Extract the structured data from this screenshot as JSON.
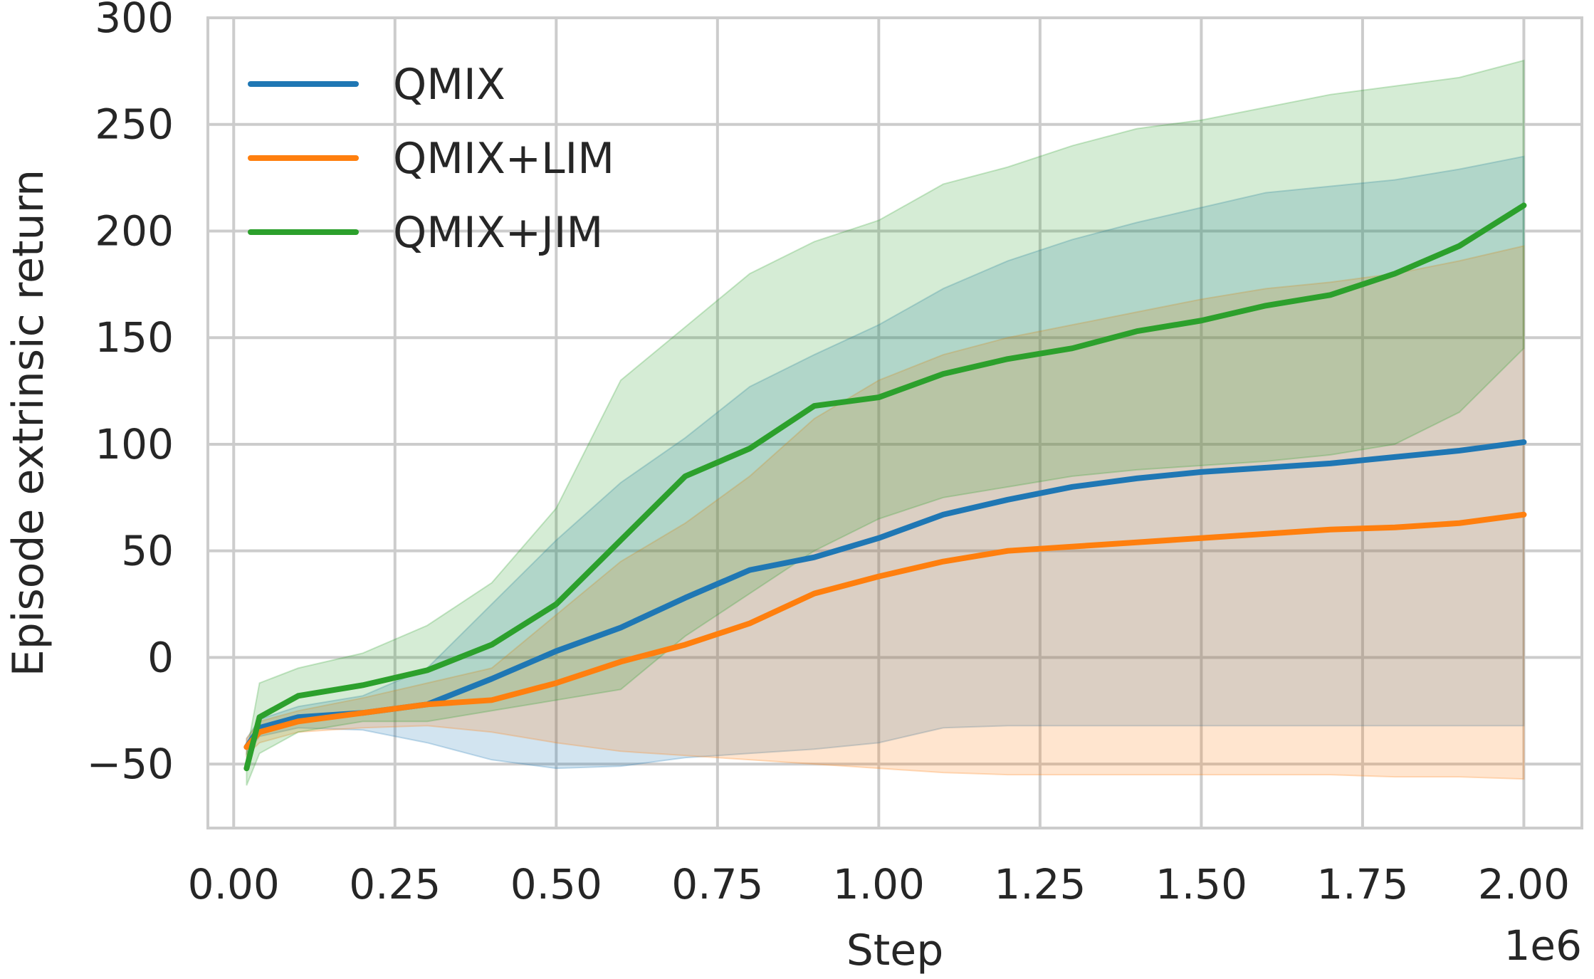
{
  "chart_data": {
    "type": "line",
    "title": "",
    "xlabel": "Step",
    "ylabel": "Episode extrinsic return",
    "x_offset_label": "1e6",
    "xlim": [
      -0.04,
      2.09
    ],
    "ylim": [
      -80,
      300
    ],
    "xticks": [
      0.0,
      0.25,
      0.5,
      0.75,
      1.0,
      1.25,
      1.5,
      1.75,
      2.0
    ],
    "xtick_labels": [
      "0.00",
      "0.25",
      "0.50",
      "0.75",
      "1.00",
      "1.25",
      "1.50",
      "1.75",
      "2.00"
    ],
    "yticks": [
      -50,
      0,
      50,
      100,
      150,
      200,
      250,
      300
    ],
    "ytick_labels": [
      "−50",
      "0",
      "50",
      "100",
      "150",
      "200",
      "250",
      "300"
    ],
    "grid": true,
    "legend": "top-left",
    "x": [
      0.02,
      0.04,
      0.1,
      0.2,
      0.3,
      0.4,
      0.5,
      0.6,
      0.7,
      0.8,
      0.9,
      1.0,
      1.1,
      1.2,
      1.3,
      1.4,
      1.5,
      1.6,
      1.7,
      1.8,
      1.9,
      2.0
    ],
    "series": [
      {
        "name": "QMIX",
        "color": "#1f77b4",
        "values": [
          -42,
          -33,
          -28,
          -26,
          -22,
          -10,
          3,
          14,
          28,
          41,
          47,
          56,
          67,
          74,
          80,
          84,
          87,
          89,
          91,
          94,
          97,
          101
        ],
        "lower": [
          -45,
          -37,
          -33,
          -34,
          -40,
          -48,
          -52,
          -51,
          -47,
          -45,
          -43,
          -40,
          -33,
          -32,
          -32,
          -32,
          -32,
          -32,
          -32,
          -32,
          -32,
          -32
        ],
        "upper": [
          -38,
          -29,
          -23,
          -18,
          -5,
          25,
          55,
          82,
          103,
          127,
          142,
          156,
          173,
          186,
          196,
          204,
          211,
          218,
          221,
          224,
          229,
          235
        ]
      },
      {
        "name": "QMIX+LIM",
        "color": "#ff7f0e",
        "values": [
          -42,
          -35,
          -30,
          -26,
          -22,
          -20,
          -12,
          -2,
          6,
          16,
          30,
          38,
          45,
          50,
          52,
          54,
          56,
          58,
          60,
          61,
          63,
          67
        ],
        "lower": [
          -46,
          -40,
          -35,
          -33,
          -32,
          -35,
          -40,
          -44,
          -46,
          -48,
          -50,
          -52,
          -54,
          -55,
          -55,
          -55,
          -55,
          -55,
          -55,
          -56,
          -56,
          -57
        ],
        "upper": [
          -38,
          -30,
          -25,
          -19,
          -12,
          -5,
          20,
          45,
          63,
          85,
          112,
          130,
          142,
          150,
          156,
          162,
          168,
          173,
          176,
          180,
          186,
          193
        ]
      },
      {
        "name": "QMIX+JIM",
        "color": "#2ca02c",
        "values": [
          -52,
          -28,
          -18,
          -13,
          -6,
          6,
          25,
          55,
          85,
          98,
          118,
          122,
          133,
          140,
          145,
          153,
          158,
          165,
          170,
          180,
          193,
          212
        ],
        "lower": [
          -60,
          -45,
          -35,
          -30,
          -30,
          -25,
          -20,
          -15,
          10,
          30,
          50,
          65,
          75,
          80,
          85,
          88,
          90,
          92,
          95,
          100,
          115,
          145
        ],
        "upper": [
          -45,
          -12,
          -5,
          2,
          15,
          35,
          70,
          130,
          155,
          180,
          195,
          205,
          222,
          230,
          240,
          248,
          252,
          258,
          264,
          268,
          272,
          280
        ]
      }
    ]
  }
}
